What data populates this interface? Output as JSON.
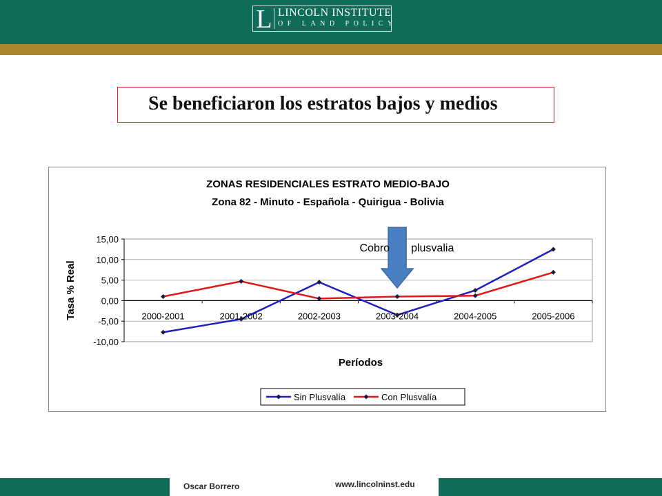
{
  "header": {
    "logo_letter": "L",
    "logo_line1": "LINCOLN INSTITUTE",
    "logo_line2": "OF LAND POLICY",
    "colors": {
      "bar": "#0f6b5a",
      "stripe": "#a8842c"
    }
  },
  "slide_title": "Se beneficiaron los estratos bajos y medios",
  "footer": {
    "author": "Oscar Borrero",
    "url": "www.lincolninst.edu"
  },
  "chart_data": {
    "type": "line",
    "title_line1": "ZONAS RESIDENCIALES ESTRATO MEDIO-BAJO",
    "title_line2": "Zona 82 - Minuto - Española - Quirigua - Bolivia",
    "xlabel": "Períodos",
    "ylabel": "Tasa % Real",
    "categories": [
      "2000-2001",
      "2001-2002",
      "2002-2003",
      "2003-2004",
      "2004-2005",
      "2005-2006"
    ],
    "ylim": [
      -10,
      15
    ],
    "yticks": [
      "15,00",
      "10,00",
      "5,00",
      "0,00",
      "-5,00",
      "-10,00"
    ],
    "grid": true,
    "legend_position": "bottom",
    "series": [
      {
        "name": "Sin Plusvalía",
        "color": "#1f1fbf",
        "values": [
          -7.7,
          -4.5,
          4.5,
          -3.5,
          2.5,
          12.5
        ]
      },
      {
        "name": "Con Plusvalía",
        "color": "#e01818",
        "values": [
          1.0,
          4.7,
          0.5,
          1.0,
          1.2,
          6.9
        ]
      }
    ],
    "annotation": {
      "text_left": "Cobro",
      "text_right": "plusvalia",
      "arrow_category": "2003-2004",
      "arrow_color": "#4a7fc1"
    }
  }
}
